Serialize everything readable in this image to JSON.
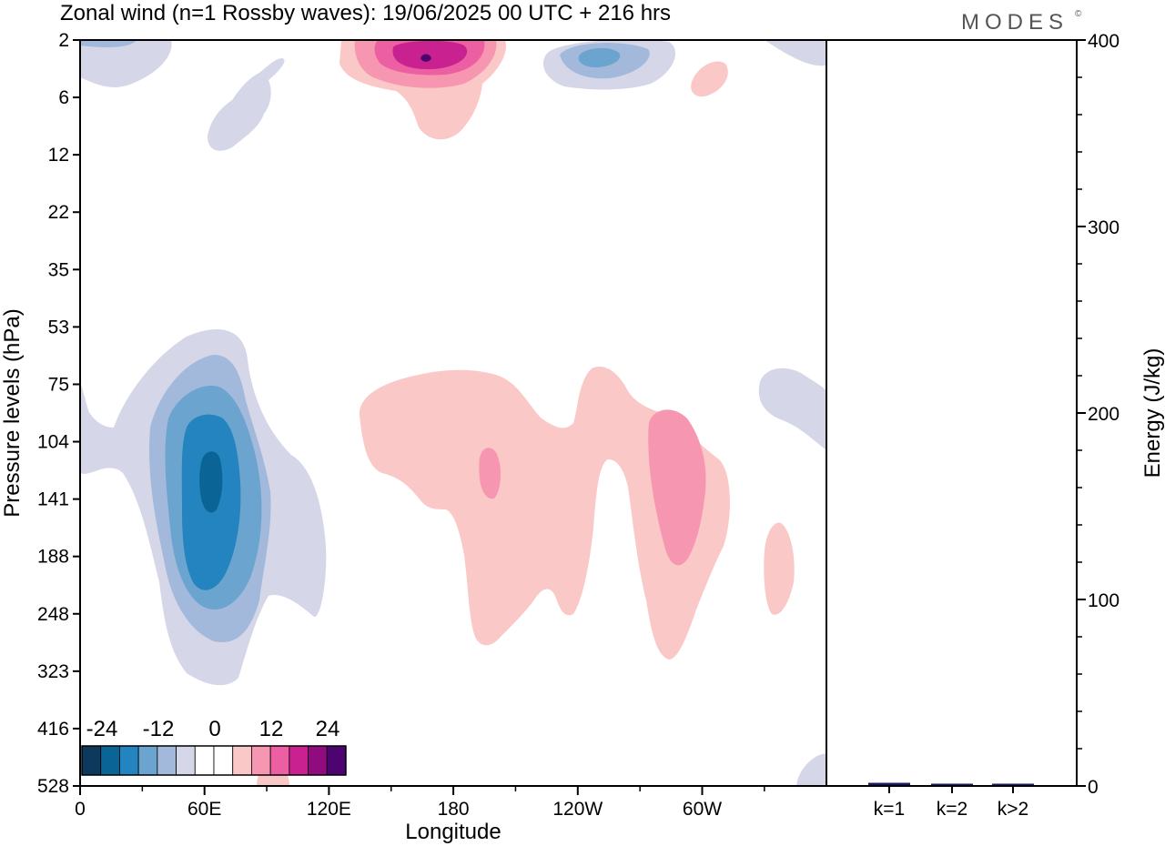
{
  "title": "Zonal wind (n=1 Rossby waves):  19/06/2025  00 UTC  + 216 hrs",
  "brand": "MODES",
  "brand_mark": "©",
  "colors": {
    "neg4": "#0d3a5c",
    "neg3": "#0a6496",
    "neg2": "#2484bf",
    "neg1": "#6ba4cf",
    "neg0": "#a3b9db",
    "negL": "#d5d7e8",
    "zero": "#ffffff",
    "posL": "#fac8c6",
    "pos0": "#f796b0",
    "pos1": "#ec5fa2",
    "pos2": "#c9218f",
    "pos3": "#8f0b7e",
    "pos4": "#4d0470",
    "bar": "#1a1a66"
  },
  "chart_data": [
    {
      "type": "contour",
      "name": "zonal-wind-hovmoller",
      "xlabel": "Longitude",
      "ylabel": "Pressure levels (hPa)",
      "x_ticks": [
        "0",
        "60E",
        "120E",
        "180",
        "120W",
        "60W"
      ],
      "y_ticks": [
        "2",
        "6",
        "12",
        "22",
        "35",
        "53",
        "75",
        "104",
        "141",
        "188",
        "248",
        "323",
        "416",
        "528"
      ],
      "colorbar": {
        "labels": [
          "-24",
          "-12",
          "0",
          "12",
          "24"
        ],
        "levels": [
          "neg4",
          "neg3",
          "neg2",
          "neg1",
          "neg0",
          "negL",
          "zero",
          "zero",
          "posL",
          "pos0",
          "pos1",
          "pos2",
          "pos3",
          "pos4"
        ]
      }
    },
    {
      "type": "bar",
      "name": "energy-by-wavenumber",
      "ylabel": "Energy (J/kg)",
      "ylim": [
        0,
        400
      ],
      "y_ticks": [
        "0",
        "100",
        "200",
        "300",
        "400"
      ],
      "categories": [
        "k=1",
        "k=2",
        "k>2"
      ],
      "values": [
        1.2,
        0.3,
        0.5
      ]
    }
  ]
}
